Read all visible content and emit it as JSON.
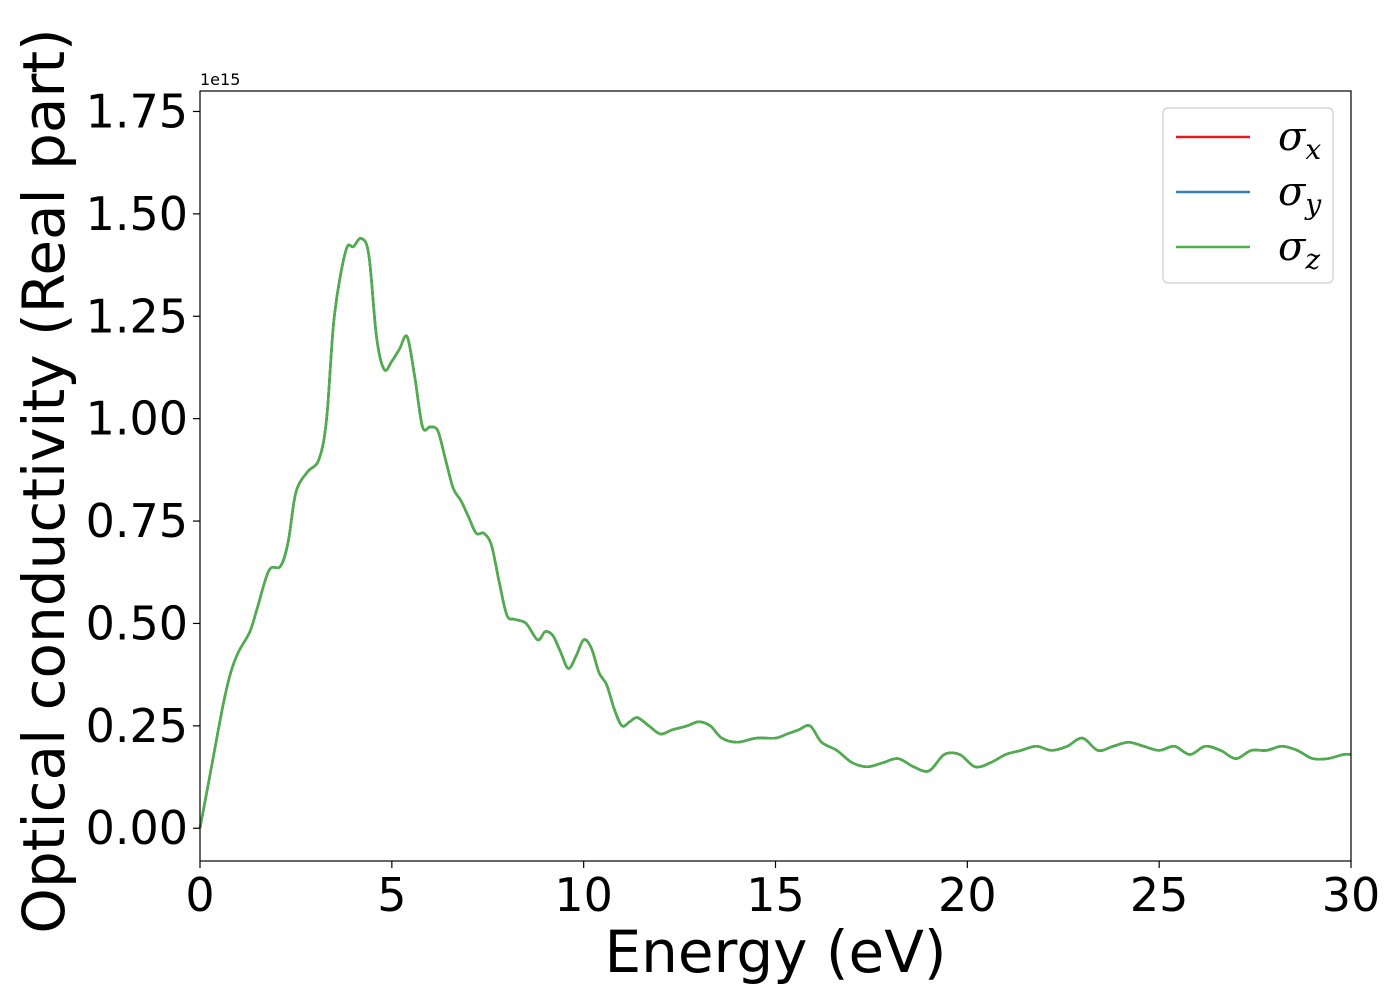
{
  "chart_data": {
    "type": "line",
    "xlabel": "Energy (eV)",
    "ylabel": "Optical conductivity (Real part)",
    "y_offset_text": "1e15",
    "xlim": [
      0,
      30
    ],
    "ylim": [
      -0.08,
      1.8
    ],
    "xticks": [
      0,
      5,
      10,
      15,
      20,
      25,
      30
    ],
    "xtick_labels": [
      "0",
      "5",
      "10",
      "15",
      "20",
      "25",
      "30"
    ],
    "yticks": [
      0.0,
      0.25,
      0.5,
      0.75,
      1.0,
      1.25,
      1.5,
      1.75
    ],
    "ytick_labels": [
      "0.00",
      "0.25",
      "0.50",
      "0.75",
      "1.00",
      "1.25",
      "1.50",
      "1.75"
    ],
    "grid": false,
    "legend_position": "upper right",
    "x": [
      0,
      0.3,
      0.6,
      0.8,
      1.0,
      1.3,
      1.5,
      1.8,
      2.1,
      2.3,
      2.5,
      2.8,
      3.1,
      3.3,
      3.5,
      3.8,
      4.0,
      4.2,
      4.4,
      4.6,
      4.8,
      5.0,
      5.2,
      5.4,
      5.6,
      5.8,
      6.0,
      6.2,
      6.4,
      6.6,
      6.8,
      7.0,
      7.2,
      7.4,
      7.6,
      7.8,
      8.0,
      8.2,
      8.5,
      8.8,
      9.0,
      9.2,
      9.4,
      9.6,
      9.8,
      10.0,
      10.2,
      10.4,
      10.6,
      10.8,
      11.0,
      11.2,
      11.4,
      11.7,
      12.0,
      12.3,
      12.7,
      13.0,
      13.3,
      13.6,
      14.0,
      14.5,
      15.0,
      15.3,
      15.6,
      15.9,
      16.2,
      16.6,
      17.0,
      17.4,
      17.8,
      18.2,
      18.6,
      19.0,
      19.4,
      19.8,
      20.2,
      20.6,
      21.0,
      21.4,
      21.8,
      22.2,
      22.6,
      23.0,
      23.4,
      23.8,
      24.2,
      24.6,
      25.0,
      25.4,
      25.8,
      26.2,
      26.6,
      27.0,
      27.4,
      27.8,
      28.2,
      28.6,
      29.0,
      29.4,
      29.8,
      30.0
    ],
    "series": [
      {
        "name": "σx",
        "label_base": "σ",
        "label_sub": "x",
        "color": "#e41a1c",
        "values": [
          0.0,
          0.15,
          0.3,
          0.38,
          0.43,
          0.48,
          0.54,
          0.63,
          0.64,
          0.7,
          0.82,
          0.87,
          0.9,
          1.0,
          1.25,
          1.41,
          1.42,
          1.44,
          1.4,
          1.2,
          1.12,
          1.14,
          1.17,
          1.2,
          1.1,
          0.98,
          0.98,
          0.97,
          0.9,
          0.83,
          0.8,
          0.76,
          0.72,
          0.72,
          0.69,
          0.6,
          0.52,
          0.51,
          0.5,
          0.46,
          0.48,
          0.47,
          0.43,
          0.39,
          0.42,
          0.46,
          0.44,
          0.38,
          0.35,
          0.29,
          0.25,
          0.26,
          0.27,
          0.25,
          0.23,
          0.24,
          0.25,
          0.26,
          0.25,
          0.22,
          0.21,
          0.22,
          0.22,
          0.23,
          0.24,
          0.25,
          0.21,
          0.19,
          0.16,
          0.15,
          0.16,
          0.17,
          0.15,
          0.14,
          0.18,
          0.18,
          0.15,
          0.16,
          0.18,
          0.19,
          0.2,
          0.19,
          0.2,
          0.22,
          0.19,
          0.2,
          0.21,
          0.2,
          0.19,
          0.2,
          0.18,
          0.2,
          0.19,
          0.17,
          0.19,
          0.19,
          0.2,
          0.19,
          0.17,
          0.17,
          0.18,
          0.18
        ]
      },
      {
        "name": "σy",
        "label_base": "σ",
        "label_sub": "y",
        "color": "#377eb8",
        "values": [
          0.0,
          0.15,
          0.3,
          0.38,
          0.43,
          0.48,
          0.54,
          0.63,
          0.64,
          0.7,
          0.82,
          0.87,
          0.9,
          1.0,
          1.25,
          1.41,
          1.42,
          1.44,
          1.4,
          1.2,
          1.12,
          1.14,
          1.17,
          1.2,
          1.1,
          0.98,
          0.98,
          0.97,
          0.9,
          0.83,
          0.8,
          0.76,
          0.72,
          0.72,
          0.69,
          0.6,
          0.52,
          0.51,
          0.5,
          0.46,
          0.48,
          0.47,
          0.43,
          0.39,
          0.42,
          0.46,
          0.44,
          0.38,
          0.35,
          0.29,
          0.25,
          0.26,
          0.27,
          0.25,
          0.23,
          0.24,
          0.25,
          0.26,
          0.25,
          0.22,
          0.21,
          0.22,
          0.22,
          0.23,
          0.24,
          0.25,
          0.21,
          0.19,
          0.16,
          0.15,
          0.16,
          0.17,
          0.15,
          0.14,
          0.18,
          0.18,
          0.15,
          0.16,
          0.18,
          0.19,
          0.2,
          0.19,
          0.2,
          0.22,
          0.19,
          0.2,
          0.21,
          0.2,
          0.19,
          0.2,
          0.18,
          0.2,
          0.19,
          0.17,
          0.19,
          0.19,
          0.2,
          0.19,
          0.17,
          0.17,
          0.18,
          0.18
        ]
      },
      {
        "name": "σz",
        "label_base": "σ",
        "label_sub": "z",
        "color": "#4daf4a",
        "values": [
          0.0,
          0.15,
          0.3,
          0.38,
          0.43,
          0.48,
          0.54,
          0.63,
          0.64,
          0.7,
          0.82,
          0.87,
          0.9,
          1.0,
          1.25,
          1.41,
          1.42,
          1.44,
          1.4,
          1.2,
          1.12,
          1.14,
          1.17,
          1.2,
          1.1,
          0.98,
          0.98,
          0.97,
          0.9,
          0.83,
          0.8,
          0.76,
          0.72,
          0.72,
          0.69,
          0.6,
          0.52,
          0.51,
          0.5,
          0.46,
          0.48,
          0.47,
          0.43,
          0.39,
          0.42,
          0.46,
          0.44,
          0.38,
          0.35,
          0.29,
          0.25,
          0.26,
          0.27,
          0.25,
          0.23,
          0.24,
          0.25,
          0.26,
          0.25,
          0.22,
          0.21,
          0.22,
          0.22,
          0.23,
          0.24,
          0.25,
          0.21,
          0.19,
          0.16,
          0.15,
          0.16,
          0.17,
          0.15,
          0.14,
          0.18,
          0.18,
          0.15,
          0.16,
          0.18,
          0.19,
          0.2,
          0.19,
          0.2,
          0.22,
          0.19,
          0.2,
          0.21,
          0.2,
          0.19,
          0.2,
          0.18,
          0.2,
          0.19,
          0.17,
          0.19,
          0.19,
          0.2,
          0.19,
          0.17,
          0.17,
          0.18,
          0.18
        ]
      }
    ]
  }
}
